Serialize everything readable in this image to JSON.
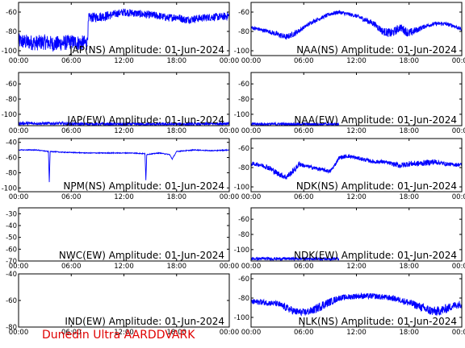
{
  "footer": {
    "text": "Dunedin Ultra AARDDVARK",
    "color": "#e00000"
  },
  "colors": {
    "trace": "#0000ff",
    "axes": "#000000"
  },
  "chart_data": [
    {
      "type": "line",
      "title": "JAP(NS) Amplitude: 01-Jun-2024",
      "x_ticks": [
        "00:00",
        "06:00",
        "12:00",
        "18:00",
        "00:00"
      ],
      "ylim": [
        -105,
        -50
      ],
      "y_ticks": [
        -100,
        -80,
        -60
      ],
      "series": [
        {
          "x": [
            0,
            1,
            2,
            3,
            4,
            5,
            6,
            7,
            7.8,
            8,
            9,
            10,
            11,
            12,
            13,
            14,
            15,
            16,
            17,
            18,
            19,
            20,
            21,
            22,
            23,
            24
          ],
          "y": [
            -90,
            -91,
            -92,
            -91,
            -93,
            -92,
            -91,
            -92,
            -92,
            -66,
            -65,
            -64,
            -62,
            -60,
            -61,
            -62,
            -63,
            -64,
            -66,
            -65,
            -68,
            -67,
            -66,
            -65,
            -65,
            -64
          ],
          "noise": [
            8,
            8,
            8,
            8,
            8,
            8,
            8,
            8,
            8,
            5,
            5,
            5,
            4,
            4,
            4,
            4,
            4,
            4,
            4,
            4,
            4,
            4,
            4,
            4,
            4,
            4
          ]
        }
      ]
    },
    {
      "type": "line",
      "title": "NAA(NS) Amplitude: 01-Jun-2024",
      "x_ticks": [
        "00:00",
        "06:00",
        "12:00",
        "18:00",
        "00:00"
      ],
      "ylim": [
        -105,
        -50
      ],
      "y_ticks": [
        -100,
        -80,
        -60
      ],
      "series": [
        {
          "x": [
            0,
            1,
            2,
            3,
            4,
            5,
            6,
            7,
            8,
            9,
            10,
            11,
            12,
            13,
            14,
            15,
            16,
            17,
            18,
            19,
            20,
            21,
            22,
            23,
            24
          ],
          "y": [
            -76,
            -78,
            -80,
            -83,
            -86,
            -82,
            -76,
            -70,
            -66,
            -62,
            -60,
            -62,
            -64,
            -68,
            -72,
            -80,
            -82,
            -76,
            -82,
            -78,
            -74,
            -72,
            -72,
            -74,
            -78
          ],
          "noise": [
            2,
            2,
            2,
            3,
            3,
            3,
            2,
            2,
            2,
            2,
            2,
            2,
            2,
            3,
            3,
            4,
            5,
            4,
            5,
            3,
            2,
            2,
            2,
            2,
            2
          ]
        }
      ]
    },
    {
      "type": "line",
      "title": "JAP(EW) Amplitude: 01-Jun-2024",
      "x_ticks": [
        "00:00",
        "06:00",
        "12:00",
        "18:00",
        "00:00"
      ],
      "ylim": [
        -115,
        -45
      ],
      "y_ticks": [
        -100,
        -80,
        -60
      ],
      "series": [
        {
          "x": [
            0,
            4,
            8,
            12,
            16,
            20,
            24
          ],
          "y": [
            -112,
            -112,
            -113,
            -113,
            -113,
            -113,
            -112
          ],
          "noise": [
            2,
            2,
            2,
            2,
            2,
            2,
            2
          ]
        }
      ]
    },
    {
      "type": "line",
      "title": "NAA(EW) Amplitude: 01-Jun-2024",
      "x_ticks": [
        "00:00",
        "06:00",
        "12:00",
        "18:00",
        "00:00"
      ],
      "ylim": [
        -115,
        -45
      ],
      "y_ticks": [
        -100,
        -80,
        -60
      ],
      "series": [
        {
          "x": [
            0,
            4,
            8,
            10
          ],
          "y": [
            -113,
            -113,
            -113,
            -113
          ],
          "noise": [
            2,
            2,
            2,
            2
          ]
        }
      ]
    },
    {
      "type": "line",
      "title": "NPM(NS) Amplitude: 01-Jun-2024",
      "x_ticks": [
        "00:00",
        "06:00",
        "12:00",
        "18:00",
        "00:00"
      ],
      "ylim": [
        -105,
        -35
      ],
      "y_ticks": [
        -100,
        -80,
        -60,
        -40
      ],
      "series": [
        {
          "x": [
            0,
            2,
            3.4,
            3.5,
            3.6,
            5,
            8,
            11,
            13,
            14.4,
            14.5,
            14.6,
            16,
            17.2,
            17.5,
            18,
            20,
            22,
            24
          ],
          "y": [
            -50,
            -50,
            -52,
            -92,
            -52,
            -53,
            -54,
            -54,
            -54,
            -55,
            -90,
            -56,
            -54,
            -56,
            -62,
            -52,
            -50,
            -51,
            -50
          ],
          "noise": [
            0.5,
            0.5,
            0.5,
            0.5,
            0.5,
            0.5,
            0.5,
            0.5,
            0.5,
            0.5,
            0.5,
            0.5,
            0.5,
            0.5,
            0.5,
            0.5,
            0.5,
            0.5,
            0.5
          ]
        }
      ]
    },
    {
      "type": "line",
      "title": "NDK(NS) Amplitude: 01-Jun-2024",
      "x_ticks": [
        "00:00",
        "06:00",
        "12:00",
        "18:00",
        "00:00"
      ],
      "ylim": [
        -105,
        -50
      ],
      "y_ticks": [
        -100,
        -80,
        -60
      ],
      "series": [
        {
          "x": [
            0,
            1,
            2,
            3,
            4,
            5,
            5.5,
            6,
            7,
            8,
            9,
            9.5,
            10,
            11,
            12,
            13,
            14,
            15,
            16,
            17,
            18,
            19,
            20,
            21,
            22,
            23,
            24
          ],
          "y": [
            -76,
            -77,
            -80,
            -86,
            -90,
            -82,
            -76,
            -78,
            -80,
            -82,
            -84,
            -78,
            -70,
            -68,
            -70,
            -72,
            -74,
            -74,
            -76,
            -78,
            -76,
            -76,
            -75,
            -74,
            -76,
            -77,
            -77
          ],
          "noise": [
            2,
            2,
            3,
            3,
            3,
            3,
            3,
            2,
            2,
            2,
            2,
            2,
            2,
            2,
            2,
            2,
            2,
            2,
            2,
            3,
            3,
            3,
            3,
            3,
            2,
            2,
            2
          ]
        }
      ]
    },
    {
      "type": "line",
      "title": "NWC(EW) Amplitude: 01-Jun-2024",
      "x_ticks": [
        "00:00",
        "06:00",
        "12:00",
        "18:00",
        "00:00"
      ],
      "ylim": [
        -70,
        -25
      ],
      "y_ticks": [
        -70,
        -60,
        -50,
        -40,
        -30
      ],
      "series": []
    },
    {
      "type": "line",
      "title": "NDK(EW) Amplitude: 01-Jun-2024",
      "x_ticks": [
        "00:00",
        "06:00",
        "12:00",
        "18:00",
        "00:00"
      ],
      "ylim": [
        -115,
        -45
      ],
      "y_ticks": [
        -100,
        -80,
        -60
      ],
      "series": [
        {
          "x": [
            0,
            4,
            8,
            10
          ],
          "y": [
            -112,
            -112,
            -112,
            -112
          ],
          "noise": [
            2,
            2,
            2,
            2
          ]
        }
      ]
    },
    {
      "type": "line",
      "title": "IND(EW) Amplitude: 01-Jun-2024",
      "x_ticks": [
        "00:00",
        "06:00",
        "12:00",
        "18:00",
        "00:00"
      ],
      "ylim": [
        -80,
        -40
      ],
      "y_ticks": [
        -80,
        -60,
        -40
      ],
      "series": []
    },
    {
      "type": "line",
      "title": "NLK(NS) Amplitude: 01-Jun-2024",
      "x_ticks": [
        "00:00",
        "06:00",
        "12:00",
        "18:00",
        "00:00"
      ],
      "ylim": [
        -110,
        -55
      ],
      "y_ticks": [
        -100,
        -80,
        -60
      ],
      "series": [
        {
          "x": [
            0,
            1,
            2,
            3,
            4,
            5,
            6,
            7,
            8,
            9,
            10,
            11,
            12,
            13,
            14,
            15,
            16,
            17,
            18,
            19,
            20,
            21,
            22,
            23,
            24
          ],
          "y": [
            -84,
            -84,
            -85,
            -86,
            -90,
            -94,
            -95,
            -93,
            -88,
            -84,
            -80,
            -79,
            -78,
            -78,
            -78,
            -79,
            -80,
            -82,
            -85,
            -88,
            -92,
            -94,
            -92,
            -88,
            -86
          ],
          "noise": [
            3,
            3,
            3,
            3,
            4,
            4,
            4,
            4,
            5,
            4,
            3,
            3,
            3,
            3,
            3,
            3,
            3,
            3,
            4,
            4,
            5,
            5,
            5,
            4,
            4
          ]
        }
      ]
    }
  ]
}
